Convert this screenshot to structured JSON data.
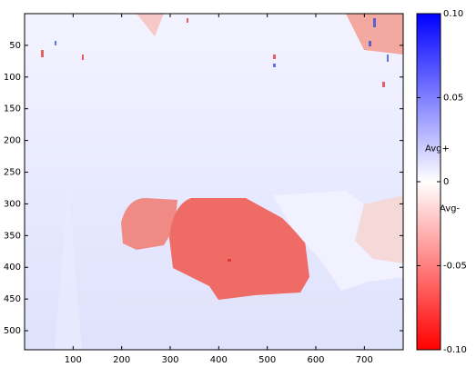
{
  "chart_data": {
    "type": "heatmap",
    "xlim": [
      0,
      780
    ],
    "ylim": [
      530,
      0
    ],
    "xticks": [
      100,
      200,
      300,
      400,
      500,
      600,
      700
    ],
    "yticks": [
      50,
      100,
      150,
      200,
      250,
      300,
      350,
      400,
      450,
      500
    ],
    "colorbar": {
      "lim": [
        -0.1,
        0.1
      ],
      "ticks": [
        {
          "value": 0.1,
          "label": "0.10"
        },
        0.05,
        0,
        -0.05,
        {
          "value": -0.1,
          "label": "-0.10"
        }
      ],
      "colors": [
        "#ff0000",
        "#ffffff",
        "#0000ff"
      ],
      "annotations": [
        {
          "text": "Avg+",
          "value": 0.01
        },
        {
          "text": "Avg-",
          "value": -0.01
        }
      ]
    }
  }
}
